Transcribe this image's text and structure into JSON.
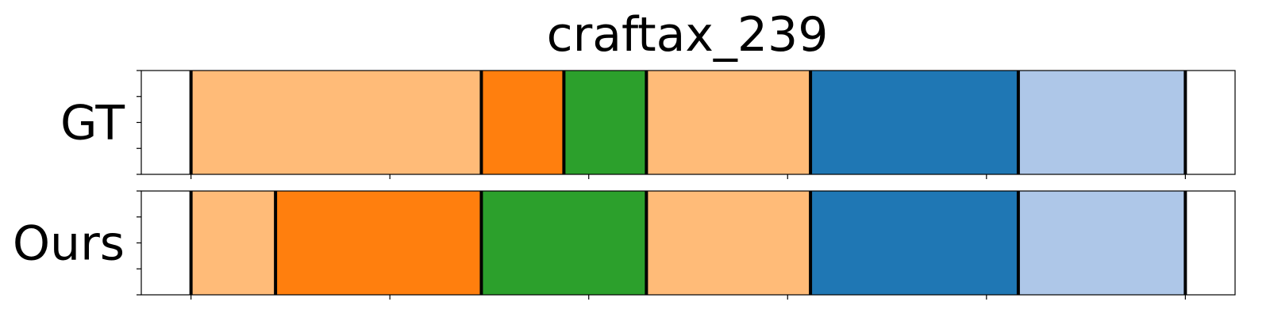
{
  "chart_data": {
    "type": "bar",
    "subtype": "segmentation-timeline",
    "title": "craftax_239",
    "xlim": [
      0,
      11
    ],
    "xticks": [
      0.5,
      2.5,
      4.5,
      6.5,
      8.5,
      10.5
    ],
    "yticks_per_row": 5,
    "rows": [
      {
        "label": "GT",
        "segments": [
          {
            "start": 0.5,
            "end": 3.42,
            "color": "#ffbb78"
          },
          {
            "start": 3.42,
            "end": 4.25,
            "color": "#ff7f0e"
          },
          {
            "start": 4.25,
            "end": 5.08,
            "color": "#2ca02c"
          },
          {
            "start": 5.08,
            "end": 6.73,
            "color": "#ffbb78"
          },
          {
            "start": 6.73,
            "end": 8.82,
            "color": "#1f77b4"
          },
          {
            "start": 8.82,
            "end": 10.5,
            "color": "#aec7e8"
          }
        ]
      },
      {
        "label": "Ours",
        "segments": [
          {
            "start": 0.5,
            "end": 1.35,
            "color": "#ffbb78"
          },
          {
            "start": 1.35,
            "end": 3.42,
            "color": "#ff7f0e"
          },
          {
            "start": 3.42,
            "end": 5.08,
            "color": "#2ca02c"
          },
          {
            "start": 5.08,
            "end": 6.73,
            "color": "#ffbb78"
          },
          {
            "start": 6.73,
            "end": 8.82,
            "color": "#1f77b4"
          },
          {
            "start": 8.82,
            "end": 10.5,
            "color": "#aec7e8"
          }
        ]
      }
    ]
  }
}
